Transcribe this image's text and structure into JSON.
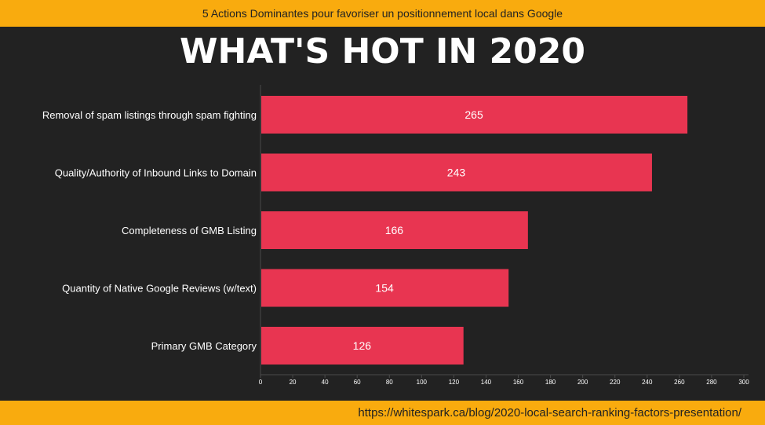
{
  "header": {
    "banner_text": "5 Actions Dominantes pour favoriser un positionnement local dans Google"
  },
  "footer": {
    "url_text": "https://whitespark.ca/blog/2020-local-search-ranking-factors-presentation/"
  },
  "colors": {
    "banner": "#f9ab0e",
    "background": "#222222",
    "bar": "#e83551"
  },
  "chart_data": {
    "type": "bar",
    "orientation": "horizontal",
    "title": "WHAT'S HOT IN 2020",
    "categories": [
      "Removal of spam listings through spam fighting",
      "Quality/Authority of Inbound Links to Domain",
      "Completeness of GMB Listing",
      "Quantity of Native Google Reviews (w/text)",
      "Primary GMB Category"
    ],
    "values": [
      265,
      243,
      166,
      154,
      126
    ],
    "xlim": [
      0,
      300
    ],
    "xticks": [
      "0",
      "20",
      "40",
      "60",
      "80",
      "100",
      "120",
      "140",
      "160",
      "180",
      "200",
      "220",
      "240",
      "260",
      "280",
      "300"
    ],
    "xlabel": "",
    "ylabel": "",
    "grid": false,
    "legend": "none"
  }
}
